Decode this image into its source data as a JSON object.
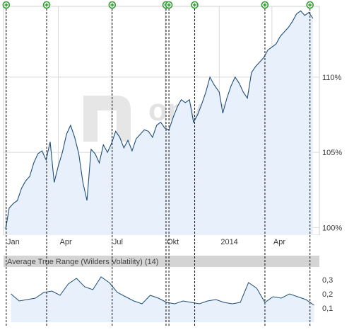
{
  "watermark": "onvista",
  "colors": {
    "line": "#1f4e79",
    "fill": "#e8f0fb",
    "grid": "#d9d9d9",
    "event_marker": "#2e9e2e",
    "panel_header": "#d4d4d4",
    "axis_bg": "#eeeeee"
  },
  "event_marker_icon": "plus-circle-icon",
  "chart_data": [
    {
      "type": "line",
      "panel": "price",
      "x_tick_labels": [
        "Jan",
        "Apr",
        "Jul",
        "Okt",
        "2014",
        "Apr"
      ],
      "y_tick_labels": [
        "100%",
        "105%",
        "110%"
      ],
      "ylim": [
        99.5,
        114.7
      ],
      "grid": true,
      "x_range": [
        "2013-01-01",
        "2014-06-15"
      ],
      "series": [
        {
          "x": [
            "2013-01-01",
            "2013-01-07",
            "2013-01-14",
            "2013-01-21",
            "2013-01-28",
            "2013-02-04",
            "2013-02-11",
            "2013-02-18",
            "2013-02-25",
            "2013-03-04",
            "2013-03-11",
            "2013-03-18",
            "2013-03-25",
            "2013-04-01",
            "2013-04-08",
            "2013-04-15",
            "2013-04-22",
            "2013-04-29",
            "2013-05-06",
            "2013-05-13",
            "2013-05-20",
            "2013-05-27",
            "2013-06-03",
            "2013-06-10",
            "2013-06-17",
            "2013-06-24",
            "2013-07-01",
            "2013-07-08",
            "2013-07-15",
            "2013-07-22",
            "2013-07-29",
            "2013-08-05",
            "2013-08-12",
            "2013-08-19",
            "2013-08-26",
            "2013-09-02",
            "2013-09-09",
            "2013-09-16",
            "2013-09-23",
            "2013-09-30",
            "2013-10-07",
            "2013-10-14",
            "2013-10-21",
            "2013-10-28",
            "2013-11-04",
            "2013-11-11",
            "2013-11-18",
            "2013-11-25",
            "2013-12-02",
            "2013-12-09",
            "2013-12-16",
            "2013-12-23",
            "2014-01-01",
            "2014-01-07",
            "2014-01-14",
            "2014-01-21",
            "2014-01-28",
            "2014-02-04",
            "2014-02-11",
            "2014-02-18",
            "2014-02-25",
            "2014-03-04",
            "2014-03-11",
            "2014-03-18",
            "2014-03-25",
            "2014-04-01",
            "2014-04-08",
            "2014-04-15",
            "2014-04-22",
            "2014-04-29",
            "2014-05-06",
            "2014-05-13",
            "2014-05-20",
            "2014-05-27",
            "2014-06-03",
            "2014-06-10"
          ],
          "values": [
            99.9,
            101.3,
            101.6,
            101.8,
            102.6,
            103.1,
            103.4,
            104.3,
            104.9,
            105.1,
            104.5,
            105.7,
            103.0,
            104.1,
            105.0,
            106.2,
            106.8,
            106.0,
            104.9,
            103.0,
            101.8,
            105.2,
            104.9,
            104.3,
            105.5,
            105.0,
            105.6,
            106.4,
            106.0,
            105.3,
            105.8,
            105.1,
            105.9,
            106.2,
            106.5,
            106.4,
            106.0,
            106.8,
            107.0,
            106.6,
            106.5,
            107.3,
            108.0,
            108.5,
            108.3,
            108.5,
            107.0,
            107.5,
            108.2,
            109.0,
            110.0,
            109.5,
            109.0,
            107.6,
            108.6,
            109.4,
            110.0,
            109.6,
            109.0,
            108.6,
            110.3,
            110.7,
            111.0,
            111.3,
            111.8,
            112.0,
            112.2,
            112.7,
            113.0,
            113.3,
            113.7,
            114.2,
            114.4,
            114.1,
            114.3,
            113.9
          ]
        }
      ]
    },
    {
      "type": "line",
      "panel": "indicator",
      "title": "Average True Range (Wilders Volatility) (14)",
      "y_tick_labels": [
        "0,1",
        "0,2",
        "0,3"
      ],
      "ylim": [
        0.0,
        0.39
      ],
      "grid": false,
      "series": [
        {
          "x": [
            "2013-01-10",
            "2013-01-24",
            "2013-02-07",
            "2013-02-21",
            "2013-03-07",
            "2013-03-21",
            "2013-04-04",
            "2013-04-18",
            "2013-05-02",
            "2013-05-16",
            "2013-05-30",
            "2013-06-13",
            "2013-06-27",
            "2013-07-11",
            "2013-07-25",
            "2013-08-08",
            "2013-08-22",
            "2013-09-05",
            "2013-09-19",
            "2013-10-03",
            "2013-10-17",
            "2013-10-31",
            "2013-11-14",
            "2013-11-28",
            "2013-12-12",
            "2013-12-26",
            "2014-01-09",
            "2014-01-23",
            "2014-02-06",
            "2014-02-20",
            "2014-03-06",
            "2014-03-20",
            "2014-04-03",
            "2014-04-17",
            "2014-05-01",
            "2014-05-15",
            "2014-05-29",
            "2014-06-12"
          ],
          "values": [
            0.2,
            0.15,
            0.16,
            0.17,
            0.21,
            0.22,
            0.19,
            0.27,
            0.31,
            0.25,
            0.23,
            0.32,
            0.28,
            0.21,
            0.18,
            0.15,
            0.13,
            0.19,
            0.17,
            0.14,
            0.13,
            0.15,
            0.14,
            0.13,
            0.15,
            0.16,
            0.14,
            0.13,
            0.14,
            0.28,
            0.24,
            0.14,
            0.18,
            0.17,
            0.2,
            0.18,
            0.16,
            0.12
          ]
        }
      ]
    }
  ],
  "event_dates": [
    "2013-01-02",
    "2013-03-12",
    "2013-07-02",
    "2013-10-02",
    "2013-10-07",
    "2013-11-20",
    "2014-03-20",
    "2014-06-05"
  ]
}
